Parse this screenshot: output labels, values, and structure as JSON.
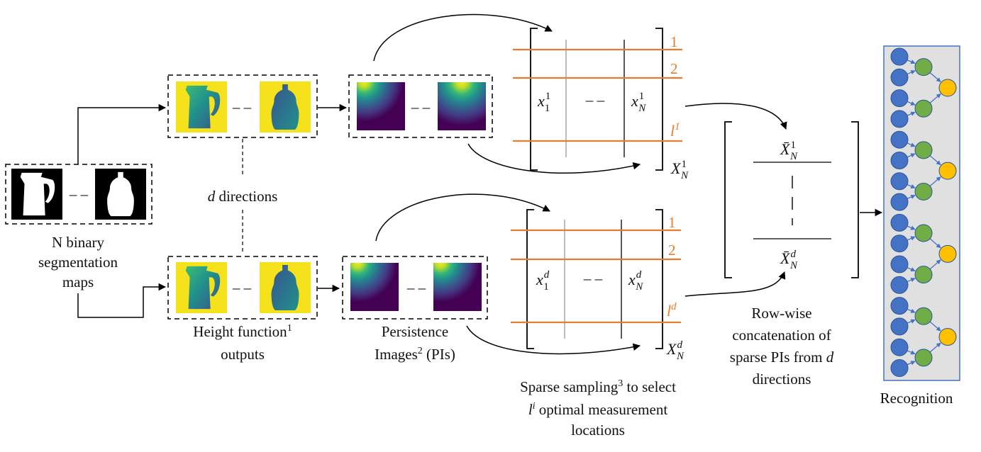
{
  "labels": {
    "input_line1": "N binary",
    "input_line2": "segmentation",
    "input_line3": "maps",
    "directions_var": "d",
    "directions_text": " directions",
    "height_line1": "Height function",
    "height_sup": "1",
    "height_line2": "outputs",
    "pi_line1": "Persistence",
    "pi_line2_pre": "Images",
    "pi_sup": "2",
    "pi_line2_post": " (PIs)",
    "sparse_line1_pre": "Sparse sampling",
    "sparse_sup": "3",
    "sparse_line1_post": " to select",
    "sparse_line2_var": "l",
    "sparse_line2_sup": "i",
    "sparse_line2_post": " optimal measurement",
    "sparse_line3": "locations",
    "concat_line1": "Row-wise",
    "concat_line2": "concatenation of",
    "concat_line3_pre": "sparse PIs from ",
    "concat_line3_var": "d",
    "concat_line4": "directions",
    "recognition": "Recognition",
    "dash": "– –"
  },
  "matrices": {
    "top": {
      "row_labels": [
        "1",
        "2"
      ],
      "row_l": "l",
      "row_l_sup": "1",
      "col_first": "x",
      "col_first_sub": "1",
      "col_first_sup": "1",
      "col_last": "x",
      "col_last_sub": "N",
      "col_last_sup": "1",
      "name": "X",
      "name_sub": "N",
      "name_sup": "1"
    },
    "bottom": {
      "row_labels": [
        "1",
        "2"
      ],
      "row_l": "l",
      "row_l_sup": "d",
      "col_first": "x",
      "col_first_sub": "1",
      "col_first_sup": "d",
      "col_last": "x",
      "col_last_sub": "N",
      "col_last_sup": "d",
      "name": "X",
      "name_sub": "N",
      "name_sup": "d"
    },
    "concat": {
      "top": "X̄",
      "top_sub": "N",
      "top_sup": "1",
      "bottom": "X̄",
      "bottom_sub": "N",
      "bottom_sup": "d"
    }
  },
  "network": {
    "layers": [
      16,
      8,
      4
    ],
    "colors": {
      "input": "#4472C4",
      "hidden": "#70AD47",
      "output": "#FFC000",
      "panel": "#E0E0E0",
      "panel_border": "#4472C4"
    }
  },
  "colors": {
    "accent_orange": "#E87C2E",
    "height_bg": "#F5E11C",
    "pi_dark": "#440154"
  }
}
